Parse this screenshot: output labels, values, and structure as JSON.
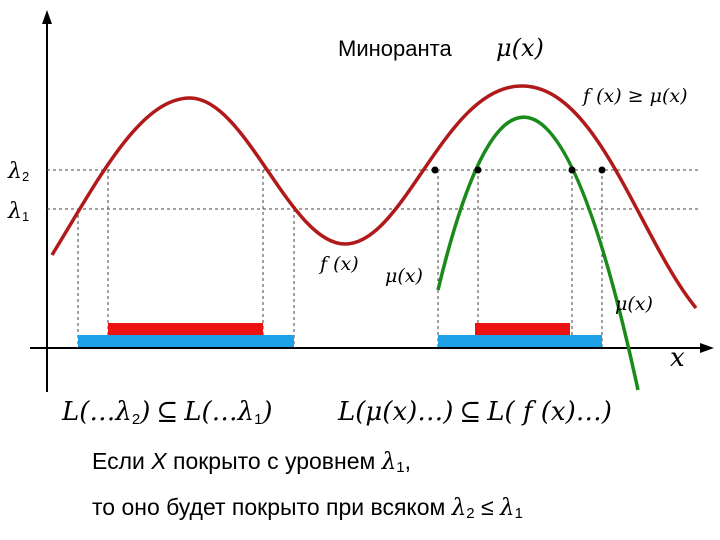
{
  "title": {
    "word": "Миноранта",
    "func": "μ(x)"
  },
  "labels": {
    "lambda2_sym": "λ",
    "lambda2_sub": "2",
    "lambda1_sym": "λ",
    "lambda1_sub": "1",
    "f_ge_mu": "f (x) ≥ μ(x)",
    "fx": "f (x)",
    "mu_left": "μ(x)",
    "mu_right": "μ(x)",
    "x_axis": "x"
  },
  "inclusions": {
    "left_a": "L(…λ",
    "left_a_sub": "2",
    "left_a_close": ")",
    "left_op": "⊆",
    "left_b": "L(…λ",
    "left_b_sub": "1",
    "left_b_close": ")",
    "right_a": "L(μ(x)…)",
    "right_op": "⊆",
    "right_b": "L( f (x)…)"
  },
  "caption": {
    "line1_pre": "Если ",
    "line1_x": "X",
    "line1_mid": " покрыто с уровнем ",
    "line1_lambda": "λ",
    "line1_sub": "1",
    "line1_end": ",",
    "line2_pre": "то оно будет покрыто при всяком  ",
    "line2_lambda2": "λ",
    "line2_sub2": "2",
    "line2_op": " ≤ ",
    "line2_lambda1": "λ",
    "line2_sub1": "1"
  },
  "colors": {
    "curve_f": "#b01a1a",
    "curve_mu": "#1a8a1a",
    "bar_red": "#ee1111",
    "bar_blue": "#1ea0e6",
    "guide": "#333333"
  }
}
